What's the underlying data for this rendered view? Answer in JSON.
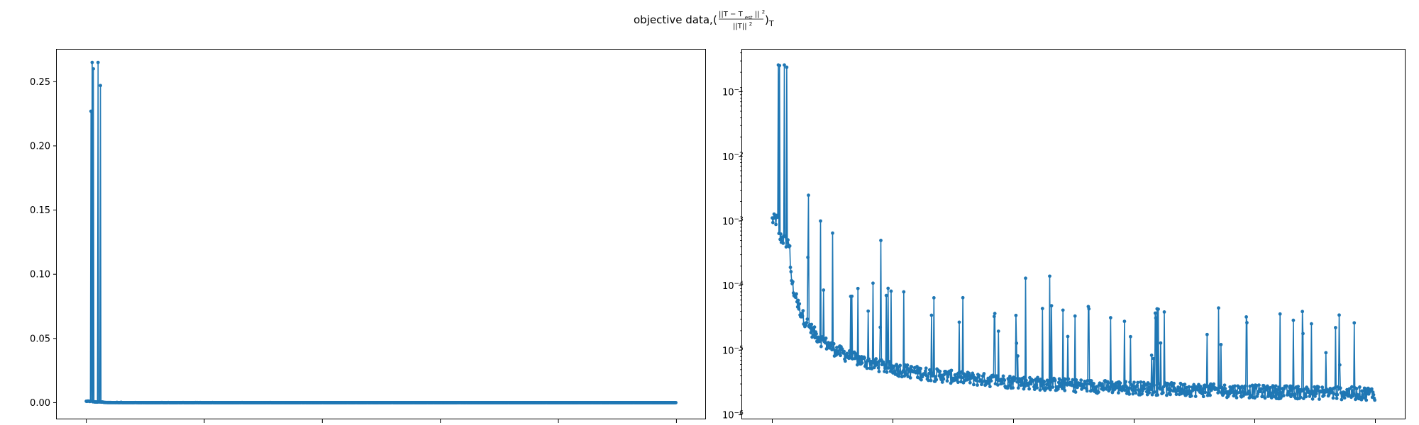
{
  "figure": {
    "title": "objective data, (‖T − T_est‖² / ‖T‖²)_T",
    "title_parts": {
      "prefix": "objective data, ",
      "numerator": "||T − T",
      "numerator_sub": "est",
      "numerator_tail": "||",
      "numerator_sup": "2",
      "denominator": "||T||",
      "denominator_sup": "2",
      "suffix_sub": "T"
    }
  },
  "chart_data": [
    {
      "type": "line",
      "marker": "dot",
      "color": "#1f77b4",
      "yscale": "linear",
      "xlim": [
        -50,
        1050
      ],
      "ylim": [
        -0.013,
        0.275
      ],
      "xticks": [
        0,
        200,
        400,
        600,
        800,
        1000
      ],
      "yticks": [
        0.0,
        0.05,
        0.1,
        0.15,
        0.2,
        0.25
      ],
      "ytick_labels": [
        "0.00",
        "0.05",
        "0.10",
        "0.15",
        "0.20",
        "0.25"
      ],
      "spikes": [
        [
          8,
          0.227
        ],
        [
          10,
          0.265
        ],
        [
          12,
          0.26
        ],
        [
          20,
          0.265
        ],
        [
          24,
          0.247
        ]
      ],
      "baseline": "near zero (~0.001 decreasing to ~0.0000014)",
      "n_points": 1000
    },
    {
      "type": "line",
      "marker": "dot",
      "color": "#1f77b4",
      "yscale": "log",
      "xlim": [
        -50,
        1050
      ],
      "ylim": [
        8.5e-07,
        0.45
      ],
      "xticks": [
        0,
        200,
        400,
        600,
        800,
        1000
      ],
      "yticks": [
        1e-06,
        1e-05,
        0.0001,
        0.001,
        0.01,
        0.1
      ],
      "ytick_labels": [
        {
          "base": "10",
          "exp": "−6"
        },
        {
          "base": "10",
          "exp": "−5"
        },
        {
          "base": "10",
          "exp": "−4"
        },
        {
          "base": "10",
          "exp": "−3"
        },
        {
          "base": "10",
          "exp": "−2"
        },
        {
          "base": "10",
          "exp": "−1"
        }
      ],
      "spikes": [
        [
          10,
          0.26
        ],
        [
          12,
          0.255
        ],
        [
          20,
          0.26
        ],
        [
          24,
          0.24
        ],
        [
          60,
          0.0025
        ],
        [
          80,
          0.001
        ],
        [
          100,
          0.00065
        ],
        [
          180,
          0.0005
        ],
        [
          420,
          0.00013
        ],
        [
          460,
          0.00014
        ],
        [
          740,
          4.5e-05
        ],
        [
          940,
          3.5e-05
        ]
      ],
      "baseline": "decays from ~8e-4 at x=0 to ~1.4e-6 at x=1000",
      "n_points": 1000
    }
  ]
}
